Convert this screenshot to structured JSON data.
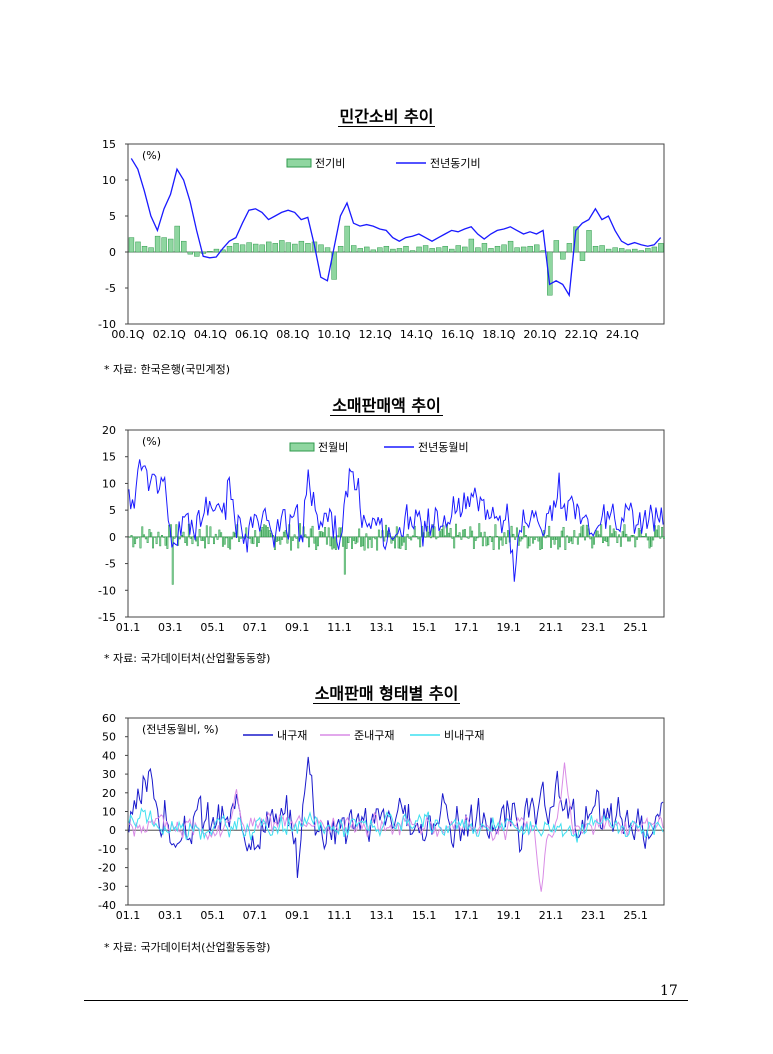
{
  "page_number": "17",
  "chart_data": [
    {
      "type": "bar+line",
      "title": "민간소비 추이",
      "unit": "(%)",
      "source": "* 자료: 한국은행(국민계정)",
      "ylim": [
        -10,
        15
      ],
      "yticks": [
        "15",
        "10",
        "5",
        "0",
        "-5",
        "-10"
      ],
      "xticks": [
        "00.1Q",
        "02.1Q",
        "04.1Q",
        "06.1Q",
        "08.1Q",
        "10.1Q",
        "12.1Q",
        "14.1Q",
        "16.1Q",
        "18.1Q",
        "20.1Q",
        "22.1Q",
        "24.1Q"
      ],
      "x_start": "2000.1Q",
      "legend": "top",
      "colors": {
        "bar": "#8fd6a0",
        "bar_edge": "#2f9a4c",
        "line": "#1a1aff"
      },
      "series": [
        {
          "name": "전기비",
          "kind": "bar",
          "values": [
            2.0,
            1.4,
            0.8,
            0.6,
            2.2,
            2.0,
            1.8,
            3.6,
            1.5,
            -0.3,
            -0.6,
            -0.2,
            0.1,
            0.4,
            0.3,
            0.8,
            1.2,
            1.0,
            1.3,
            1.1,
            1.0,
            1.4,
            1.2,
            1.6,
            1.3,
            1.1,
            1.5,
            1.2,
            1.4,
            1.0,
            0.6,
            -3.8,
            0.8,
            3.6,
            0.9,
            0.5,
            0.7,
            0.3,
            0.6,
            0.8,
            0.4,
            0.5,
            0.8,
            0.2,
            0.7,
            0.9,
            0.5,
            0.6,
            0.8,
            0.4,
            0.9,
            0.7,
            1.8,
            0.6,
            1.2,
            0.5,
            0.8,
            1.0,
            1.5,
            0.6,
            0.7,
            0.8,
            1.0,
            0.2,
            -6.0,
            1.6,
            -1.0,
            1.2,
            3.5,
            -1.2,
            3.0,
            0.8,
            0.9,
            0.4,
            0.6,
            0.5,
            0.3,
            0.4,
            0.2,
            0.5,
            0.7,
            1.2
          ]
        },
        {
          "name": "전년동기비",
          "kind": "line",
          "values": [
            13.0,
            11.5,
            8.5,
            5.0,
            3.0,
            6.0,
            8.0,
            11.5,
            10.0,
            7.0,
            3.0,
            -0.6,
            -0.8,
            -0.7,
            0.5,
            1.5,
            2.0,
            4.0,
            5.8,
            6.0,
            5.5,
            4.5,
            5.0,
            5.5,
            5.8,
            5.5,
            4.5,
            4.8,
            1.0,
            -3.5,
            -4.0,
            0.5,
            5.0,
            6.8,
            4.0,
            3.6,
            3.8,
            3.6,
            3.2,
            3.0,
            2.0,
            1.5,
            2.0,
            2.2,
            2.5,
            2.0,
            1.5,
            2.0,
            2.5,
            3.0,
            2.8,
            3.2,
            3.5,
            2.5,
            1.8,
            2.5,
            3.0,
            3.2,
            3.5,
            3.0,
            2.5,
            2.8,
            2.5,
            3.0,
            -4.5,
            -4.0,
            -4.5,
            -6.0,
            3.0,
            4.0,
            4.5,
            6.0,
            4.5,
            5.0,
            3.0,
            1.5,
            1.0,
            1.3,
            1.0,
            0.8,
            1.0,
            2.0
          ]
        }
      ]
    },
    {
      "type": "bar+line",
      "title": "소매판매액 추이",
      "unit": "(%)",
      "source": "* 자료: 국가데이터처(산업활동동향)",
      "ylim": [
        -15,
        20
      ],
      "yticks": [
        "20",
        "15",
        "10",
        "5",
        "0",
        "-5",
        "-10",
        "-15"
      ],
      "xticks": [
        "01.1",
        "03.1",
        "05.1",
        "07.1",
        "09.1",
        "11.1",
        "13.1",
        "15.1",
        "17.1",
        "19.1",
        "21.1",
        "23.1",
        "25.1"
      ],
      "x_start": "2001.1",
      "legend": "top",
      "colors": {
        "bar": "#8fd6a0",
        "bar_edge": "#2f9a4c",
        "line": "#1a1aff"
      },
      "series": [
        {
          "name": "전월비",
          "kind": "bar",
          "values": []
        },
        {
          "name": "전년동월비",
          "kind": "line",
          "values": []
        }
      ]
    },
    {
      "type": "line",
      "title": "소매판매 형태별 추이",
      "unit": "(전년동월비, %)",
      "source": "* 자료: 국가데이터처(산업활동동향)",
      "ylim": [
        -40,
        60
      ],
      "yticks": [
        "60",
        "50",
        "40",
        "30",
        "20",
        "10",
        "0",
        "-10",
        "-20",
        "-30",
        "-40"
      ],
      "xticks": [
        "01.1",
        "03.1",
        "05.1",
        "07.1",
        "09.1",
        "11.1",
        "13.1",
        "15.1",
        "17.1",
        "19.1",
        "21.1",
        "23.1",
        "25.1"
      ],
      "x_start": "2001.1",
      "legend": "top",
      "colors": {
        "s1": "#1a1acc",
        "s2": "#d98ce6",
        "s3": "#3fe0f0"
      },
      "series": [
        {
          "name": "내구재",
          "kind": "line",
          "values": []
        },
        {
          "name": "준내구재",
          "kind": "line",
          "values": []
        },
        {
          "name": "비내구재",
          "kind": "line",
          "values": []
        }
      ]
    }
  ]
}
